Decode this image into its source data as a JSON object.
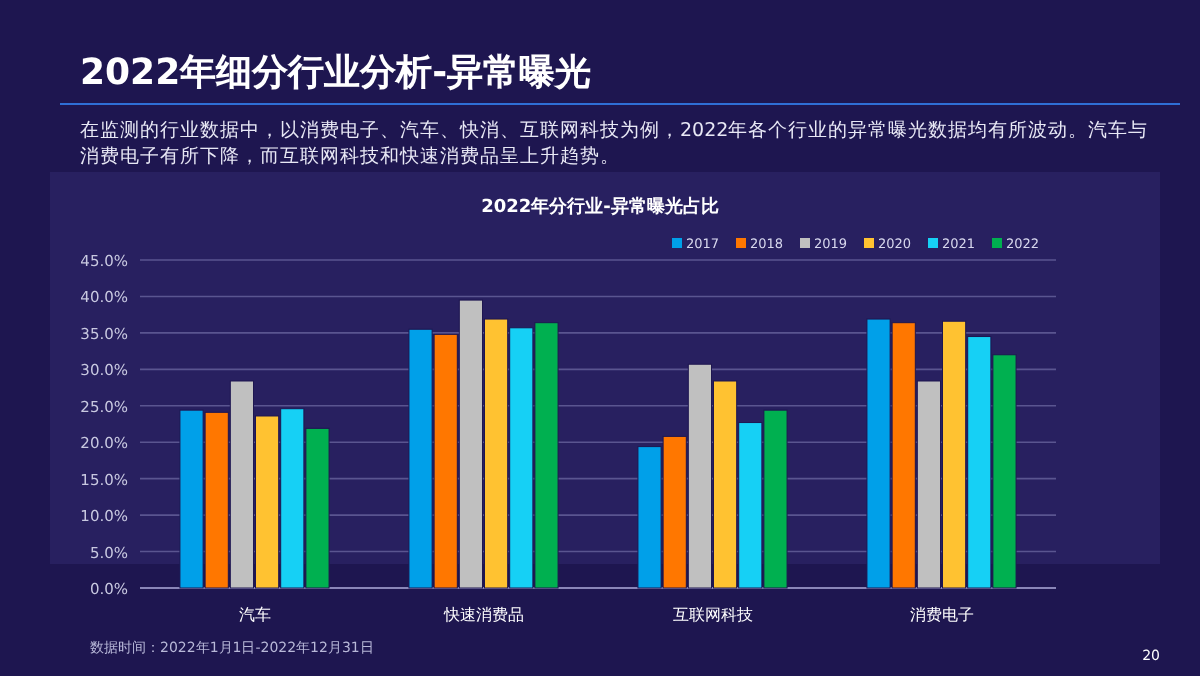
{
  "chart_data": {
    "type": "bar",
    "title": "2022年细分行业分析-异常曝光",
    "subtitle": "在监测的行业数据中，以消费电子、汽车、快消、互联网科技为例，2022年各个行业的异常曝光数据均有所波动。汽车与消费电子有所下降，而互联网科技和快速消费品呈上升趋势。",
    "annotations": [
      "2022年分行业-异常曝光占比",
      "数据时间：2022年1月1日-2022年12月31日",
      "20"
    ],
    "categories": [
      "汽车",
      "快速消费品",
      "互联网科技",
      "消费电子"
    ],
    "series": [
      {
        "name": "2017",
        "color": "#00a0e9",
        "values": [
          24.4,
          35.5,
          19.4,
          36.9
        ]
      },
      {
        "name": "2018",
        "color": "#ff7700",
        "values": [
          24.1,
          34.8,
          20.8,
          36.4
        ]
      },
      {
        "name": "2019",
        "color": "#c0c0c0",
        "values": [
          28.4,
          39.5,
          30.7,
          28.4
        ]
      },
      {
        "name": "2020",
        "color": "#ffc231",
        "values": [
          23.6,
          36.9,
          28.4,
          36.6
        ]
      },
      {
        "name": "2021",
        "color": "#16d0f5",
        "values": [
          24.6,
          35.7,
          22.7,
          34.5
        ]
      },
      {
        "name": "2022",
        "color": "#00b050",
        "values": [
          21.9,
          36.4,
          24.4,
          32.0
        ]
      }
    ],
    "ylim": [
      0,
      45
    ],
    "yticks": [
      {
        "value": 0,
        "label": "0.0%"
      },
      {
        "value": 5,
        "label": "5.0%"
      },
      {
        "value": 10,
        "label": "10.0%"
      },
      {
        "value": 15,
        "label": "15.0%"
      },
      {
        "value": 20,
        "label": "20.0%"
      },
      {
        "value": 25,
        "label": "25.0%"
      },
      {
        "value": 30,
        "label": "30.0%"
      },
      {
        "value": 35,
        "label": "35.0%"
      },
      {
        "value": 40,
        "label": "40.0%"
      },
      {
        "value": 45,
        "label": "45.0%"
      }
    ],
    "grid": "y",
    "legend": "top right"
  }
}
